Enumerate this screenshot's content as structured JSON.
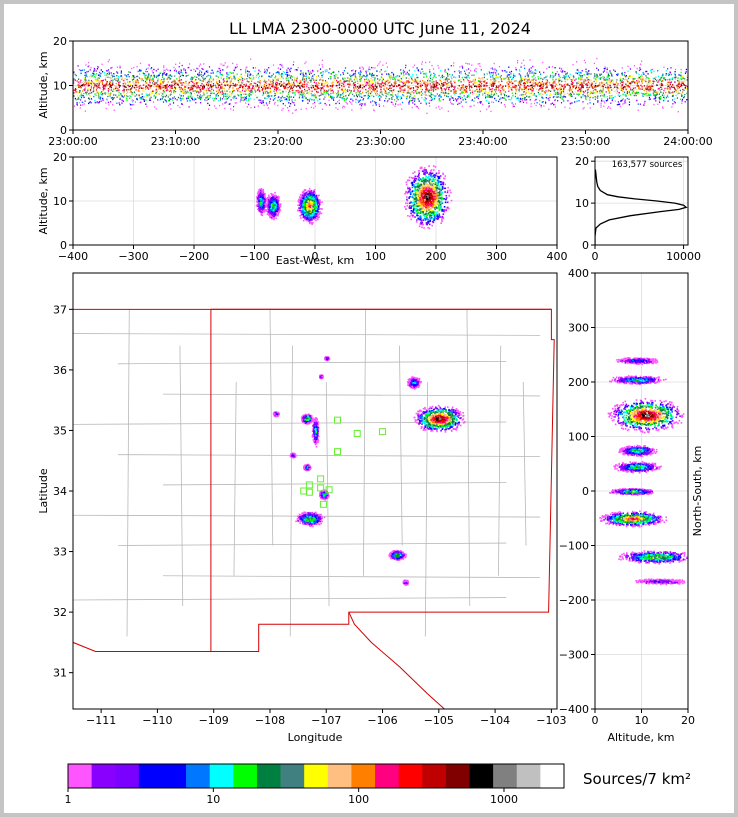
{
  "title": "LL LMA 2300-0000 UTC June 11, 2024",
  "colors": {
    "scale": [
      "#ff55ff",
      "#9900ff",
      "#7a00ff",
      "#0000ff",
      "#0000ff",
      "#0077ff",
      "#00ffff",
      "#00ff00",
      "#008040",
      "#408080",
      "#ffff00",
      "#ffbf80",
      "#ff8000",
      "#ff0080",
      "#ff0000",
      "#c00000",
      "#800000",
      "#000000",
      "#808080",
      "#c0c0c0",
      "#ffffff"
    ],
    "state_border": "#d40000",
    "county_border": "#b8b8b8",
    "station_marker": "#66ee33"
  },
  "chart_data": [
    {
      "id": "time_height",
      "type": "heatmap",
      "xlabel": "",
      "ylabel": "Altitude, km",
      "x_ticks": [
        "23:00:00",
        "23:10:00",
        "23:20:00",
        "23:30:00",
        "23:40:00",
        "23:50:00",
        "24:00:00"
      ],
      "y_ticks": [
        0,
        10,
        20
      ],
      "ylim": [
        0,
        20
      ],
      "core_altitude_km": [
        6,
        14
      ],
      "peak_altitude_km": 10
    },
    {
      "id": "ew_altitude",
      "type": "heatmap",
      "xlabel": "East-West, km",
      "ylabel": "Altitude, km",
      "x_ticks": [
        -400,
        -300,
        -200,
        -100,
        0,
        100,
        200,
        300,
        400
      ],
      "y_ticks": [
        0,
        10,
        20
      ],
      "xlim": [
        -400,
        400
      ],
      "ylim": [
        0,
        20
      ],
      "cells": [
        {
          "x": 185,
          "z": 11,
          "rx": 38,
          "rz": 7,
          "intensity": 1.0
        },
        {
          "x": -10,
          "z": 9,
          "rx": 20,
          "rz": 4,
          "intensity": 0.75
        },
        {
          "x": -70,
          "z": 9,
          "rx": 12,
          "rz": 3,
          "intensity": 0.5
        },
        {
          "x": -90,
          "z": 10,
          "rx": 8,
          "rz": 3,
          "intensity": 0.45
        }
      ]
    },
    {
      "id": "altitude_histogram",
      "type": "line",
      "annotation": "163,577 sources",
      "x_ticks": [
        0,
        10000
      ],
      "y_ticks": [
        0,
        10,
        20
      ],
      "xlim": [
        0,
        10500
      ],
      "ylim": [
        0,
        21
      ],
      "altitude_km": [
        0,
        2,
        4,
        5,
        6,
        7,
        8,
        8.5,
        9,
        9.5,
        10,
        10.5,
        11,
        11.5,
        12,
        13,
        14,
        15,
        16,
        17,
        18
      ],
      "counts": [
        0,
        0,
        100,
        600,
        1600,
        4000,
        7500,
        9500,
        10300,
        10000,
        9000,
        7000,
        4500,
        2600,
        1400,
        600,
        300,
        200,
        150,
        100,
        50
      ]
    },
    {
      "id": "plan_view",
      "type": "scatter",
      "xlabel": "Longitude",
      "ylabel": "Latitude",
      "x_ticks": [
        -111,
        -110,
        -109,
        -108,
        -107,
        -106,
        -105,
        -104,
        -103
      ],
      "y_ticks": [
        31,
        32,
        33,
        34,
        35,
        36,
        37
      ],
      "xlim": [
        -111.5,
        -102.9
      ],
      "ylim": [
        30.4,
        37.6
      ],
      "cells": [
        {
          "lon": -105.0,
          "lat": 35.2,
          "rlon": 0.45,
          "rlat": 0.22,
          "intensity": 1.0
        },
        {
          "lon": -105.45,
          "lat": 35.8,
          "rlon": 0.12,
          "rlat": 0.1,
          "intensity": 0.4
        },
        {
          "lon": -107.3,
          "lat": 33.55,
          "rlon": 0.25,
          "rlat": 0.12,
          "intensity": 0.55
        },
        {
          "lon": -107.05,
          "lat": 33.95,
          "rlon": 0.08,
          "rlat": 0.08,
          "intensity": 0.5
        },
        {
          "lon": -107.35,
          "lat": 35.2,
          "rlon": 0.1,
          "rlat": 0.08,
          "intensity": 0.6
        },
        {
          "lon": -107.2,
          "lat": 35.0,
          "rlon": 0.06,
          "rlat": 0.25,
          "intensity": 0.4
        },
        {
          "lon": -105.75,
          "lat": 32.95,
          "rlon": 0.15,
          "rlat": 0.08,
          "intensity": 0.55
        },
        {
          "lon": -107.35,
          "lat": 34.4,
          "rlon": 0.06,
          "rlat": 0.05,
          "intensity": 0.45
        },
        {
          "lon": -107.9,
          "lat": 35.28,
          "rlon": 0.05,
          "rlat": 0.04,
          "intensity": 0.3
        },
        {
          "lon": -107.6,
          "lat": 34.6,
          "rlon": 0.05,
          "rlat": 0.04,
          "intensity": 0.3
        },
        {
          "lon": -105.6,
          "lat": 32.5,
          "rlon": 0.05,
          "rlat": 0.04,
          "intensity": 0.25
        },
        {
          "lon": -107.0,
          "lat": 36.2,
          "rlon": 0.04,
          "rlat": 0.03,
          "intensity": 0.25
        },
        {
          "lon": -107.1,
          "lat": 35.9,
          "rlon": 0.03,
          "rlat": 0.03,
          "intensity": 0.25
        }
      ],
      "stations": [
        {
          "lon": -106.8,
          "lat": 35.17
        },
        {
          "lon": -106.45,
          "lat": 34.95
        },
        {
          "lon": -106.0,
          "lat": 34.98
        },
        {
          "lon": -106.8,
          "lat": 34.65
        },
        {
          "lon": -107.1,
          "lat": 34.2
        },
        {
          "lon": -107.3,
          "lat": 34.1
        },
        {
          "lon": -107.4,
          "lat": 34.0
        },
        {
          "lon": -107.3,
          "lat": 33.98
        },
        {
          "lon": -107.1,
          "lat": 34.05
        },
        {
          "lon": -106.95,
          "lat": 34.02
        },
        {
          "lon": -107.05,
          "lat": 33.78
        }
      ]
    },
    {
      "id": "ns_altitude",
      "type": "heatmap",
      "xlabel": "Altitude, km",
      "ylabel": "North-South, km",
      "x_ticks": [
        0,
        10,
        20
      ],
      "y_ticks": [
        -400,
        -300,
        -200,
        -100,
        0,
        100,
        200,
        300,
        400
      ],
      "xlim": [
        0,
        20
      ],
      "ylim": [
        -400,
        400
      ],
      "cells": [
        {
          "z": 11,
          "ns": 140,
          "rz": 8,
          "rns": 30,
          "intensity": 1.0
        },
        {
          "z": 9,
          "ns": 205,
          "rz": 6,
          "rns": 8,
          "intensity": 0.45
        },
        {
          "z": 9,
          "ns": 240,
          "rz": 5,
          "rns": 6,
          "intensity": 0.3
        },
        {
          "z": 9,
          "ns": 75,
          "rz": 4,
          "rns": 10,
          "intensity": 0.5
        },
        {
          "z": 9,
          "ns": 45,
          "rz": 5,
          "rns": 10,
          "intensity": 0.5
        },
        {
          "z": 8,
          "ns": 0,
          "rz": 5,
          "rns": 6,
          "intensity": 0.55
        },
        {
          "z": 8,
          "ns": -50,
          "rz": 7,
          "rns": 14,
          "intensity": 0.8
        },
        {
          "z": 13,
          "ns": -120,
          "rz": 8,
          "rns": 12,
          "intensity": 0.6
        },
        {
          "z": 14,
          "ns": -165,
          "rz": 6,
          "rns": 5,
          "intensity": 0.25
        }
      ]
    }
  ],
  "colorbar": {
    "label": "Sources/7 km²",
    "ticks": [
      "1",
      "10",
      "100",
      "1000"
    ]
  }
}
